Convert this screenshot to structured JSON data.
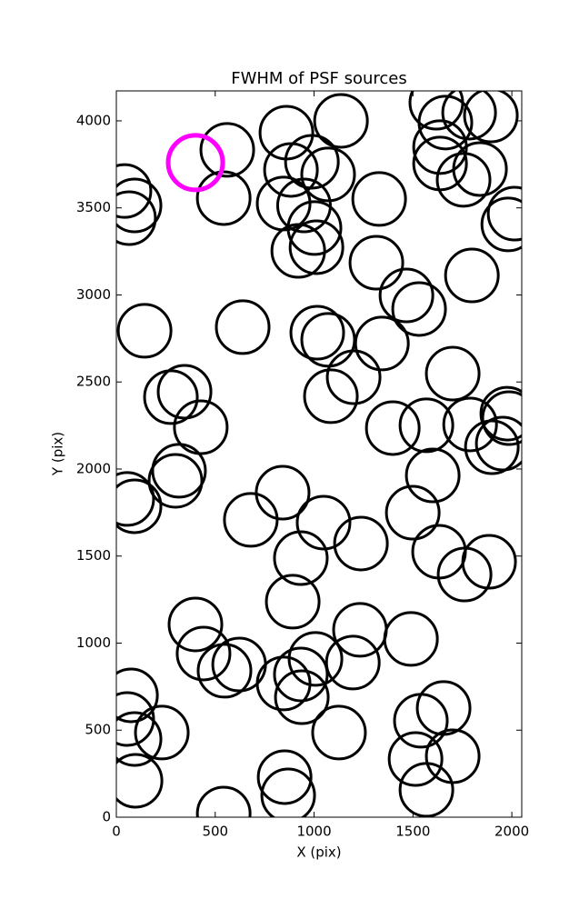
{
  "chart_data": {
    "type": "scatter",
    "title": "FWHM of PSF sources",
    "x_label": "X (pix)",
    "y_label": "Y (pix)",
    "xlim": [
      0,
      2050
    ],
    "ylim": [
      0,
      4172
    ],
    "xticks": [
      0,
      500,
      1000,
      1500,
      2000
    ],
    "yticks": [
      0,
      500,
      1000,
      1500,
      2000,
      2500,
      3000,
      3500,
      4000
    ],
    "grid": false,
    "series": [
      {
        "color": "#000000",
        "x": [
          41,
          92,
          64,
          561,
          543,
          860,
          1136,
          989,
          883,
          1071,
          846,
          949,
          1002,
          920,
          1012,
          1329,
          1315,
          1467,
          1531,
          1798,
          1618,
          1664,
          1784,
          1894,
          1637,
          1637,
          1756,
          1839,
          1982,
          2014,
          143,
          639,
          1016,
          1071,
          1343,
          1200,
          1085,
          1701,
          276,
          345,
          427,
          1398,
          1568,
          1789,
          1977,
          1986,
          1954,
          1899,
          317,
          299,
          1600,
          55,
          92,
          841,
          680,
          1048,
          1499,
          933,
          1237,
          1632,
          1761,
          1885,
          892,
          400,
          441,
          547,
          621,
          1232,
          1490,
          1007,
          1196,
          846,
          933,
          938,
          74,
          55,
          92,
          230,
          1126,
          1540,
          1655,
          1513,
          1701,
          97,
          851,
          869,
          1568,
          543
        ],
        "values": [
          3597,
          3514,
          3441,
          3833,
          3556,
          3932,
          4000,
          3765,
          3718,
          3692,
          3525,
          3514,
          3384,
          3253,
          3274,
          3551,
          3185,
          2997,
          2919,
          3112,
          4104,
          3990,
          4047,
          4031,
          3849,
          3755,
          3661,
          3723,
          3405,
          3467,
          2794,
          2815,
          2783,
          2742,
          2721,
          2527,
          2418,
          2548,
          2413,
          2444,
          2240,
          2235,
          2251,
          2256,
          2318,
          2292,
          2146,
          2125,
          1990,
          1932,
          1963,
          1828,
          1786,
          1864,
          1708,
          1692,
          1749,
          1488,
          1572,
          1525,
          1394,
          1467,
          1238,
          1107,
          940,
          841,
          877,
          1076,
          1024,
          909,
          888,
          768,
          820,
          689,
          700,
          564,
          449,
          486,
          486,
          554,
          627,
          334,
          350,
          209,
          230,
          125,
          157,
          21
        ]
      },
      {
        "color": "#ff00ff",
        "x": [
          400
        ],
        "values": [
          3760
        ]
      }
    ]
  }
}
